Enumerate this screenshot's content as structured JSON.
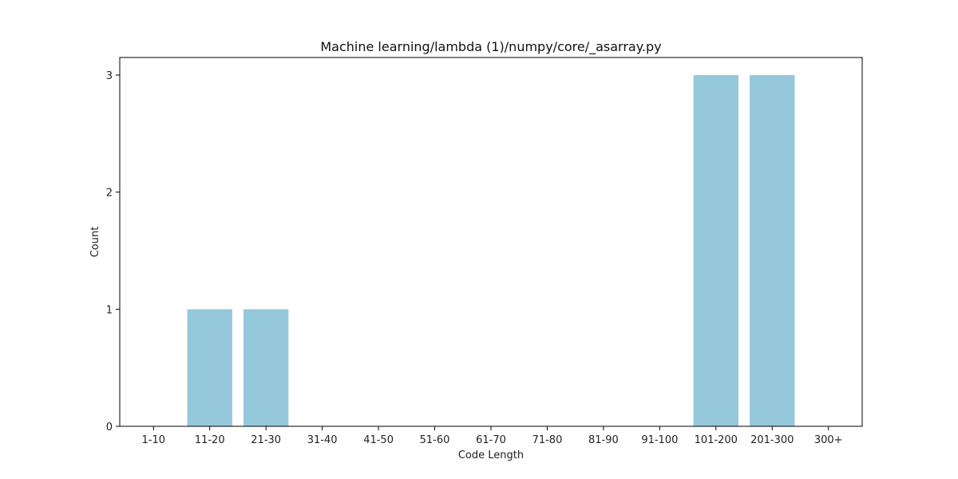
{
  "chart_data": {
    "type": "bar",
    "title": "Machine learning/lambda (1)/numpy/core/_asarray.py",
    "xlabel": "Code Length",
    "ylabel": "Count",
    "categories": [
      "1-10",
      "11-20",
      "21-30",
      "31-40",
      "41-50",
      "51-60",
      "61-70",
      "71-80",
      "81-90",
      "91-100",
      "101-200",
      "201-300",
      "300+"
    ],
    "values": [
      0,
      1,
      1,
      0,
      0,
      0,
      0,
      0,
      0,
      0,
      3,
      3,
      0
    ],
    "ylim": [
      0,
      3.15
    ],
    "yticks": [
      0,
      1,
      2,
      3
    ],
    "bar_color": "#96c8dc",
    "grid": false,
    "legend": "none"
  }
}
